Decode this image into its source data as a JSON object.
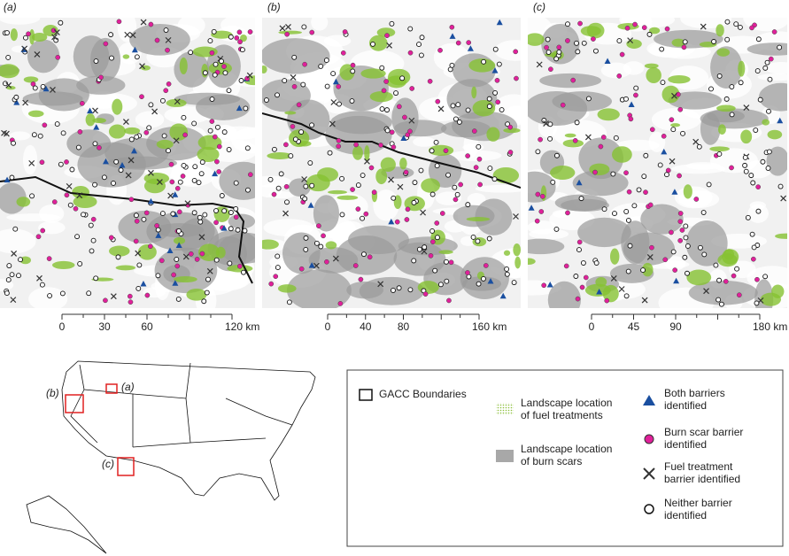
{
  "panels": [
    {
      "label": "(a)",
      "scale": [
        "0",
        "30",
        "60",
        "120 km"
      ]
    },
    {
      "label": "(b)",
      "scale": [
        "0",
        "40",
        "80",
        "160 km"
      ]
    },
    {
      "label": "(c)",
      "scale": [
        "0",
        "45",
        "90",
        "180 km"
      ]
    }
  ],
  "inset_map": {
    "labels": [
      "(a)",
      "(b)",
      "(c)"
    ]
  },
  "legend": {
    "boundary": "GACC Boundaries",
    "fuel_treatments": [
      "Landscape location",
      "of fuel treatments"
    ],
    "burn_scars": [
      "Landscape location",
      "of burn scars"
    ],
    "both": [
      "Both barriers",
      "identified"
    ],
    "burn_scar_barrier": [
      "Burn scar barrier",
      "identified"
    ],
    "fuel_barrier": [
      "Fuel treatment",
      "barrier identified"
    ],
    "neither": [
      "Neither barrier",
      "identified"
    ]
  }
}
